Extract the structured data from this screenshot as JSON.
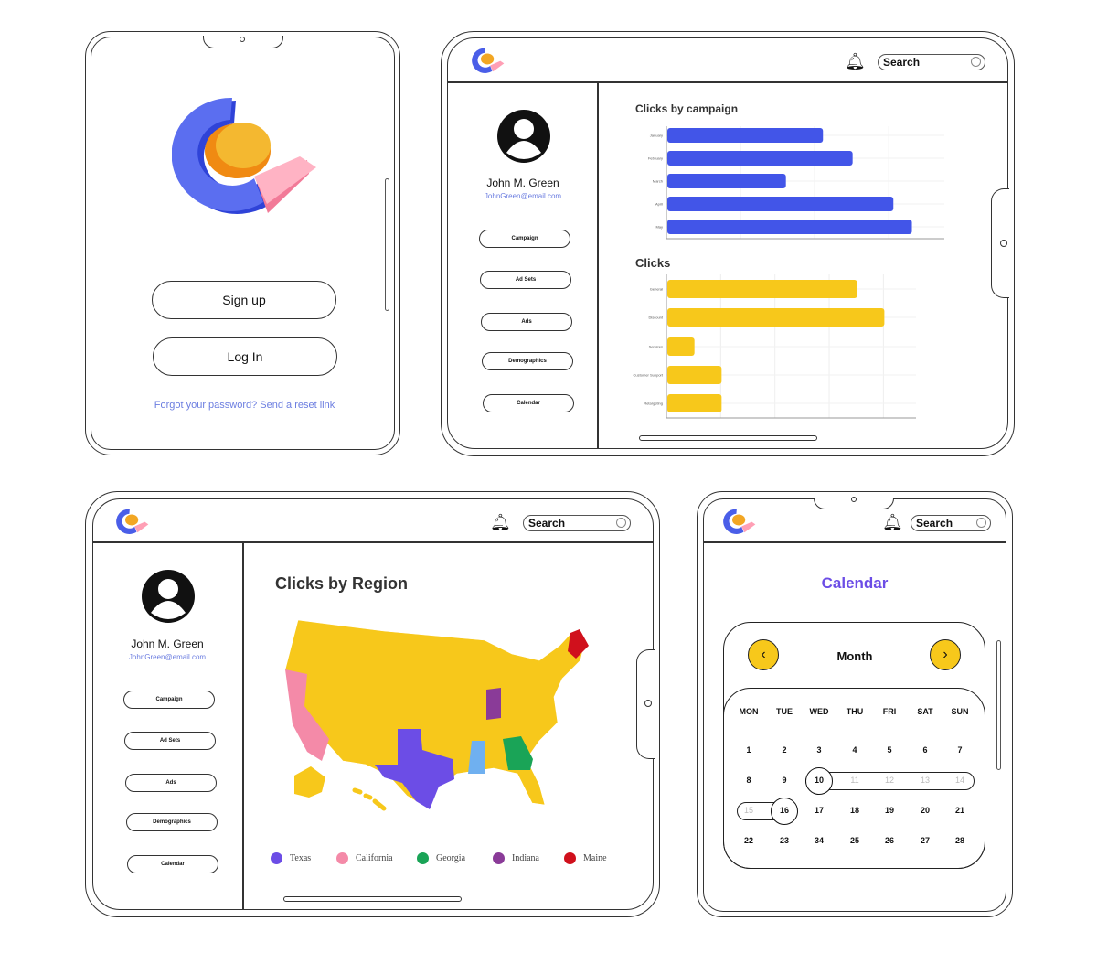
{
  "login": {
    "signup_label": "Sign up",
    "login_label": "Log In",
    "forgot_text": "Forgot your password? Send a reset link"
  },
  "header": {
    "search_placeholder": "Search"
  },
  "sidebar": {
    "user_name": "John M. Green",
    "user_email": "JohnGreen@email.com",
    "items": [
      {
        "label": "Campaign"
      },
      {
        "label": "Ad Sets"
      },
      {
        "label": "Ads"
      },
      {
        "label": "Demographics"
      },
      {
        "label": "Calendar"
      }
    ]
  },
  "colors": {
    "blue": "#4255e8",
    "yellow": "#f7c81b",
    "accent_purple": "#6c4de6",
    "texas": "#6c4de6",
    "california": "#f48aa8",
    "georgia": "#1aa457",
    "indiana": "#8a3b98",
    "maine": "#d0101c",
    "mississippi": "#6fb0f0"
  },
  "chart_data": [
    {
      "type": "bar",
      "orientation": "horizontal",
      "title": "Clicks by campaign",
      "categories": [
        "January",
        "February",
        "March",
        "April",
        "May"
      ],
      "values": [
        2.1,
        2.5,
        1.6,
        3.05,
        3.3
      ],
      "xlim": [
        0,
        3.75
      ],
      "grid": true,
      "color": "#4255e8"
    },
    {
      "type": "bar",
      "orientation": "horizontal",
      "title": "Clicks",
      "categories": [
        "General",
        "Discount",
        "Services",
        "Customer Support",
        "Retargeting"
      ],
      "values": [
        3.5,
        4,
        0.5,
        1,
        1
      ],
      "xlim": [
        0,
        4.6
      ],
      "grid": true,
      "color": "#f7c81b"
    }
  ],
  "map": {
    "title": "Clicks by Region",
    "legend": [
      {
        "label": "Texas",
        "color": "#6c4de6"
      },
      {
        "label": "California",
        "color": "#f48aa8"
      },
      {
        "label": "Georgia",
        "color": "#1aa457"
      },
      {
        "label": "Indiana",
        "color": "#8a3b98"
      },
      {
        "label": "Maine",
        "color": "#d0101c"
      }
    ]
  },
  "calendar": {
    "title": "Calendar",
    "month_label": "Month",
    "weekdays": [
      "MON",
      "TUE",
      "WED",
      "THU",
      "FRI",
      "SAT",
      "SUN"
    ],
    "weeks": [
      [
        "1",
        "2",
        "3",
        "4",
        "5",
        "6",
        "7"
      ],
      [
        "8",
        "9",
        "10",
        "11",
        "12",
        "13",
        "14"
      ],
      [
        "15",
        "16",
        "17",
        "18",
        "19",
        "20",
        "21"
      ],
      [
        "22",
        "23",
        "34",
        "25",
        "26",
        "27",
        "28"
      ]
    ],
    "selected": [
      "10",
      "16"
    ],
    "in_range": [
      "11",
      "12",
      "13",
      "14",
      "15"
    ]
  }
}
